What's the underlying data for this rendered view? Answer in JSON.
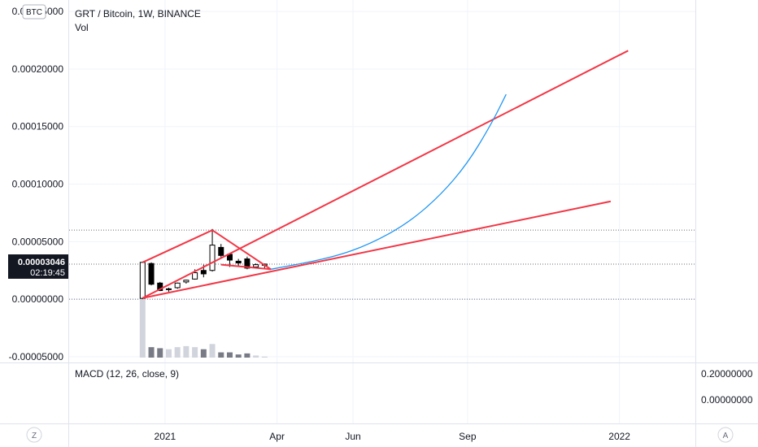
{
  "header": {
    "symbol_title": "GRT / Bitcoin, 1W, BINANCE",
    "volume_label": "Vol",
    "currency_badge": "BTC"
  },
  "price_tag": {
    "value": "0.00003046",
    "countdown": "02:19:45"
  },
  "macd": {
    "label": "MACD (12, 26, close, 9)",
    "ticks": [
      {
        "label": "0.20000000",
        "value": 0.2
      },
      {
        "label": "0.00000000",
        "value": 0.0
      }
    ]
  },
  "controls": {
    "left_button": "Z",
    "right_button": "A"
  },
  "colors": {
    "up": "#ffffff",
    "down": "#000000",
    "line": "#f23645",
    "curve": "#2196f3",
    "grid": "#f0f3fa",
    "dotted": "#6a6d78",
    "vol_light": "#d1d4dc",
    "vol_dark": "#787b86"
  },
  "chart_data": {
    "type": "candlestick",
    "title": "GRT / Bitcoin, 1W, BINANCE",
    "y_ticks": [
      {
        "label": "0.00025000",
        "value": 0.00025
      },
      {
        "label": "0.00020000",
        "value": 0.0002
      },
      {
        "label": "0.00015000",
        "value": 0.00015
      },
      {
        "label": "0.00010000",
        "value": 0.0001
      },
      {
        "label": "0.00005000",
        "value": 5e-05
      },
      {
        "label": "0.00000000",
        "value": 0.0
      },
      {
        "label": "-0.00005000",
        "value": -5e-05
      }
    ],
    "x_ticks": [
      {
        "label": "2021",
        "date": "2021-01-01"
      },
      {
        "label": "Apr",
        "date": "2021-04-01"
      },
      {
        "label": "Jun",
        "date": "2021-06-01"
      },
      {
        "label": "Sep",
        "date": "2021-09-01"
      },
      {
        "label": "2022",
        "date": "2022-01-01"
      }
    ],
    "x_range": [
      "2020-10-16",
      "2022-03-03"
    ],
    "y_range": [
      -5.5e-05,
      0.00026
    ],
    "grid": true,
    "horizontal_levels": [
      6e-05,
      3.046e-05,
      0.0
    ],
    "candles": [
      {
        "date": "2020-12-14",
        "open": 7e-07,
        "high": 3.23e-05,
        "low": 0.0,
        "close": 3.2e-05,
        "volume": 70
      },
      {
        "date": "2020-12-21",
        "open": 3.1e-05,
        "high": 3.2e-05,
        "low": 1.2e-05,
        "close": 1.3e-05,
        "volume": 10
      },
      {
        "date": "2020-12-28",
        "open": 1.4e-05,
        "high": 1.5e-05,
        "low": 7e-06,
        "close": 7.5e-06,
        "volume": 9
      },
      {
        "date": "2021-01-04",
        "open": 9e-06,
        "high": 1e-05,
        "low": 6.5e-06,
        "close": 9e-06,
        "volume": 8
      },
      {
        "date": "2021-01-11",
        "open": 1e-05,
        "high": 1.45e-05,
        "low": 9e-06,
        "close": 1.4e-05,
        "volume": 10
      },
      {
        "date": "2021-01-18",
        "open": 1.5e-05,
        "high": 1.7e-05,
        "low": 1.35e-05,
        "close": 1.65e-05,
        "volume": 11
      },
      {
        "date": "2021-01-25",
        "open": 1.75e-05,
        "high": 2.6e-05,
        "low": 1.7e-05,
        "close": 2.3e-05,
        "volume": 10
      },
      {
        "date": "2021-02-01",
        "open": 2.5e-05,
        "high": 3e-05,
        "low": 1.9e-05,
        "close": 2.2e-05,
        "volume": 8
      },
      {
        "date": "2021-02-08",
        "open": 2.5e-05,
        "high": 6.1e-05,
        "low": 2.4e-05,
        "close": 4.7e-05,
        "volume": 13
      },
      {
        "date": "2021-02-15",
        "open": 4.5e-05,
        "high": 4.8e-05,
        "low": 3.6e-05,
        "close": 3.8e-05,
        "volume": 5
      },
      {
        "date": "2021-02-22",
        "open": 3.9e-05,
        "high": 4e-05,
        "low": 2.8e-05,
        "close": 3.4e-05,
        "volume": 5
      },
      {
        "date": "2021-03-01",
        "open": 3.3e-05,
        "high": 3.5e-05,
        "low": 2.9e-05,
        "close": 3.15e-05,
        "volume": 3
      },
      {
        "date": "2021-03-08",
        "open": 3.5e-05,
        "high": 3.7e-05,
        "low": 2.6e-05,
        "close": 2.7e-05,
        "volume": 4
      },
      {
        "date": "2021-03-15",
        "open": 2.8e-05,
        "high": 3.1e-05,
        "low": 2.7e-05,
        "close": 3e-05,
        "volume": 2
      },
      {
        "date": "2021-03-22",
        "open": 2.95e-05,
        "high": 3.1e-05,
        "low": 2.65e-05,
        "close": 3.05e-05,
        "volume": 1
      }
    ],
    "trend_lines": [
      {
        "name": "upper channel",
        "from": {
          "date": "2020-12-14",
          "value": 1e-06
        },
        "to": {
          "date": "2022-01-08",
          "value": 0.000216
        }
      },
      {
        "name": "lower support",
        "from": {
          "date": "2020-12-14",
          "value": 1e-06
        },
        "to": {
          "date": "2021-12-25",
          "value": 8.5e-05
        }
      },
      {
        "name": "triangle upper left",
        "from": {
          "date": "2020-12-14",
          "value": 3.2e-05
        },
        "to": {
          "date": "2021-02-08",
          "value": 6e-05
        }
      },
      {
        "name": "triangle upper right",
        "from": {
          "date": "2021-02-08",
          "value": 6e-05
        },
        "to": {
          "date": "2021-03-27",
          "value": 2.6e-05
        }
      },
      {
        "name": "triangle base",
        "from": {
          "date": "2021-02-15",
          "value": 3e-05
        },
        "to": {
          "date": "2021-03-27",
          "value": 2.6e-05
        }
      }
    ],
    "projection_curve": [
      {
        "date": "2021-03-27",
        "value": 2.6e-05
      },
      {
        "date": "2021-05-15",
        "value": 3.6e-05
      },
      {
        "date": "2021-06-15",
        "value": 4.8e-05
      },
      {
        "date": "2021-07-15",
        "value": 6.6e-05
      },
      {
        "date": "2021-08-10",
        "value": 9e-05
      },
      {
        "date": "2021-09-01",
        "value": 0.000118
      },
      {
        "date": "2021-09-20",
        "value": 0.000152
      },
      {
        "date": "2021-10-02",
        "value": 0.000178
      }
    ]
  }
}
